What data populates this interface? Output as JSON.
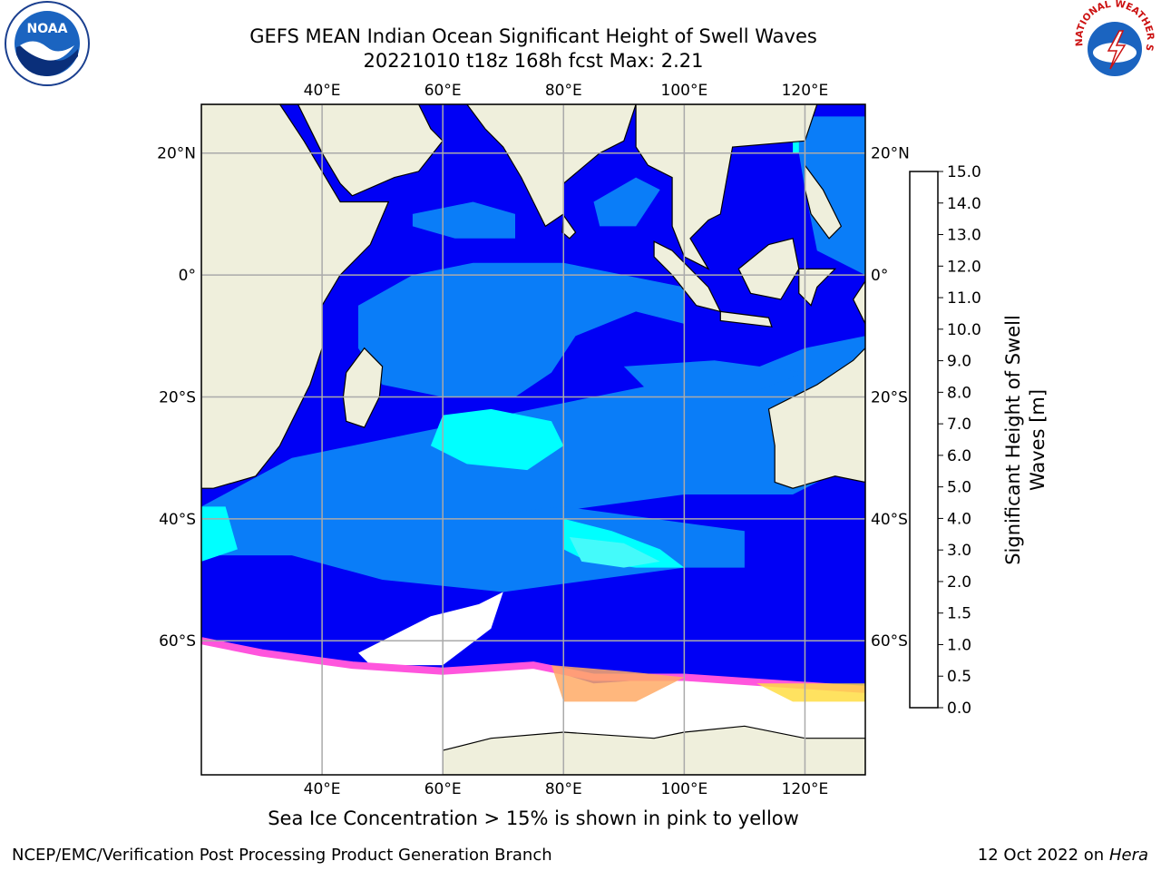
{
  "header": {
    "title_line1": "GEFS MEAN Indian Ocean Significant Height of Swell Waves",
    "title_line2": "20221010 t18z 168h fcst   Max: 2.21"
  },
  "logos": {
    "left": "noaa-logo",
    "left_text": "NOAA",
    "right": "nws-logo",
    "right_text": "NATIONAL WEATHER SERVICE"
  },
  "map": {
    "lon_ticks": [
      "40°E",
      "60°E",
      "80°E",
      "100°E",
      "120°E"
    ],
    "lat_ticks": [
      "20°N",
      "0°",
      "20°S",
      "40°S",
      "60°S"
    ],
    "lon_range": [
      20,
      130
    ],
    "lat_range": [
      -82,
      28
    ],
    "colors": {
      "land": "#efefdc",
      "ice": "#ffffff",
      "ocean_low": "#0000f5",
      "ocean_mid": "#0a7df8",
      "ocean_high": "#00ffff",
      "ocean_higher": "#44fafa",
      "grid": "#aaaaaa",
      "sea_ice_edge": [
        "#ff55dd",
        "#ffaa66",
        "#ffdd44"
      ]
    }
  },
  "colorbar": {
    "label_line1": "Significant Height of Swell",
    "label_line2": "Waves [m]",
    "ticks": [
      "0.0",
      "0.5",
      "1.0",
      "1.5",
      "2.0",
      "3.0",
      "4.0",
      "5.0",
      "6.0",
      "7.0",
      "8.0",
      "9.0",
      "10.0",
      "11.0",
      "12.0",
      "13.0",
      "14.0",
      "15.0"
    ],
    "colors": [
      "#0000ff",
      "#0a7cff",
      "#00ffff",
      "#55ffee",
      "#aaffff",
      "#55ff77",
      "#00dd00",
      "#55cc00",
      "#99dd00",
      "#ccee00",
      "#eeff00",
      "#ffff00",
      "#ffdd00",
      "#ffaa00",
      "#ff8800",
      "#ff5500",
      "#ff2200",
      "#ff0000"
    ]
  },
  "footer": {
    "note": "Sea Ice Concentration > 15% is shown in pink to yellow",
    "credit": "NCEP/EMC/Verification Post Processing Product Generation Branch",
    "date_text": "12 Oct 2022 on ",
    "machine": "Hera"
  }
}
